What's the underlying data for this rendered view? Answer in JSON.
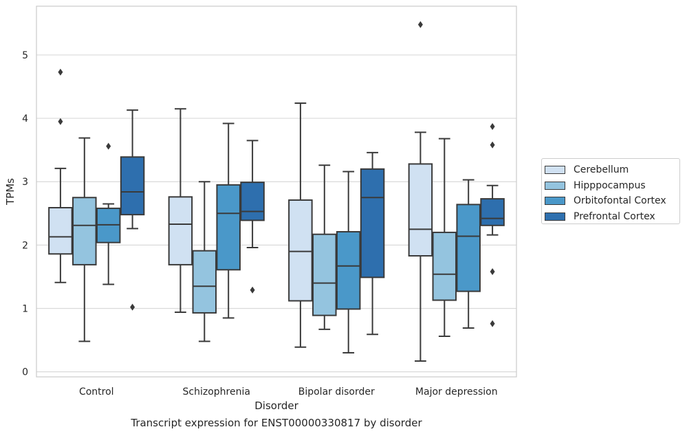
{
  "caption": "Transcript expression for ENST00000330817 by disorder",
  "chart_data": {
    "type": "boxplot",
    "xlabel": "Disorder",
    "ylabel": "TPMs",
    "ylim": [
      -0.08,
      5.77
    ],
    "yticks": [
      0,
      1,
      2,
      3,
      4,
      5
    ],
    "grid": "horizontal",
    "legend_position": "right",
    "categories": [
      "Control",
      "Schizophrenia",
      "Bipolar disorder",
      "Major depression"
    ],
    "series": [
      {
        "name": "Cerebellum",
        "color": "#d0e1f2",
        "boxes": [
          {
            "whislo": 1.41,
            "q1": 1.86,
            "med": 2.13,
            "q3": 2.59,
            "whishi": 3.21,
            "fliers": [
              3.95,
              4.73
            ]
          },
          {
            "whislo": 0.94,
            "q1": 1.69,
            "med": 2.33,
            "q3": 2.76,
            "whishi": 4.15,
            "fliers": []
          },
          {
            "whislo": 0.39,
            "q1": 1.12,
            "med": 1.9,
            "q3": 2.71,
            "whishi": 4.24,
            "fliers": []
          },
          {
            "whislo": 0.17,
            "q1": 1.83,
            "med": 2.25,
            "q3": 3.28,
            "whishi": 3.78,
            "fliers": [
              5.48
            ]
          }
        ]
      },
      {
        "name": "Hipppocampus",
        "color": "#94c4df",
        "boxes": [
          {
            "whislo": 0.48,
            "q1": 1.69,
            "med": 2.31,
            "q3": 2.75,
            "whishi": 3.69,
            "fliers": []
          },
          {
            "whislo": 0.48,
            "q1": 0.93,
            "med": 1.35,
            "q3": 1.91,
            "whishi": 3.0,
            "fliers": []
          },
          {
            "whislo": 0.67,
            "q1": 0.89,
            "med": 1.4,
            "q3": 2.17,
            "whishi": 3.26,
            "fliers": []
          },
          {
            "whislo": 0.56,
            "q1": 1.13,
            "med": 1.54,
            "q3": 2.2,
            "whishi": 3.68,
            "fliers": []
          }
        ]
      },
      {
        "name": "Orbitofontal Cortex",
        "color": "#4a98c9",
        "boxes": [
          {
            "whislo": 1.38,
            "q1": 2.04,
            "med": 2.32,
            "q3": 2.58,
            "whishi": 2.65,
            "fliers": [
              3.56
            ]
          },
          {
            "whislo": 0.85,
            "q1": 1.61,
            "med": 2.5,
            "q3": 2.95,
            "whishi": 3.92,
            "fliers": []
          },
          {
            "whislo": 0.3,
            "q1": 0.99,
            "med": 1.67,
            "q3": 2.21,
            "whishi": 3.16,
            "fliers": []
          },
          {
            "whislo": 0.69,
            "q1": 1.27,
            "med": 2.14,
            "q3": 2.64,
            "whishi": 3.03,
            "fliers": []
          }
        ]
      },
      {
        "name": "Prefrontal Cortex",
        "color": "#2e6fae",
        "boxes": [
          {
            "whislo": 2.26,
            "q1": 2.48,
            "med": 2.84,
            "q3": 3.39,
            "whishi": 4.13,
            "fliers": [
              1.02
            ]
          },
          {
            "whislo": 1.96,
            "q1": 2.39,
            "med": 2.53,
            "q3": 2.99,
            "whishi": 3.65,
            "fliers": [
              1.29
            ]
          },
          {
            "whislo": 0.59,
            "q1": 1.49,
            "med": 2.75,
            "q3": 3.2,
            "whishi": 3.46,
            "fliers": []
          },
          {
            "whislo": 2.16,
            "q1": 2.31,
            "med": 2.42,
            "q3": 2.73,
            "whishi": 2.94,
            "fliers": [
              0.76,
              1.58,
              3.58,
              3.87
            ]
          }
        ]
      }
    ]
  }
}
